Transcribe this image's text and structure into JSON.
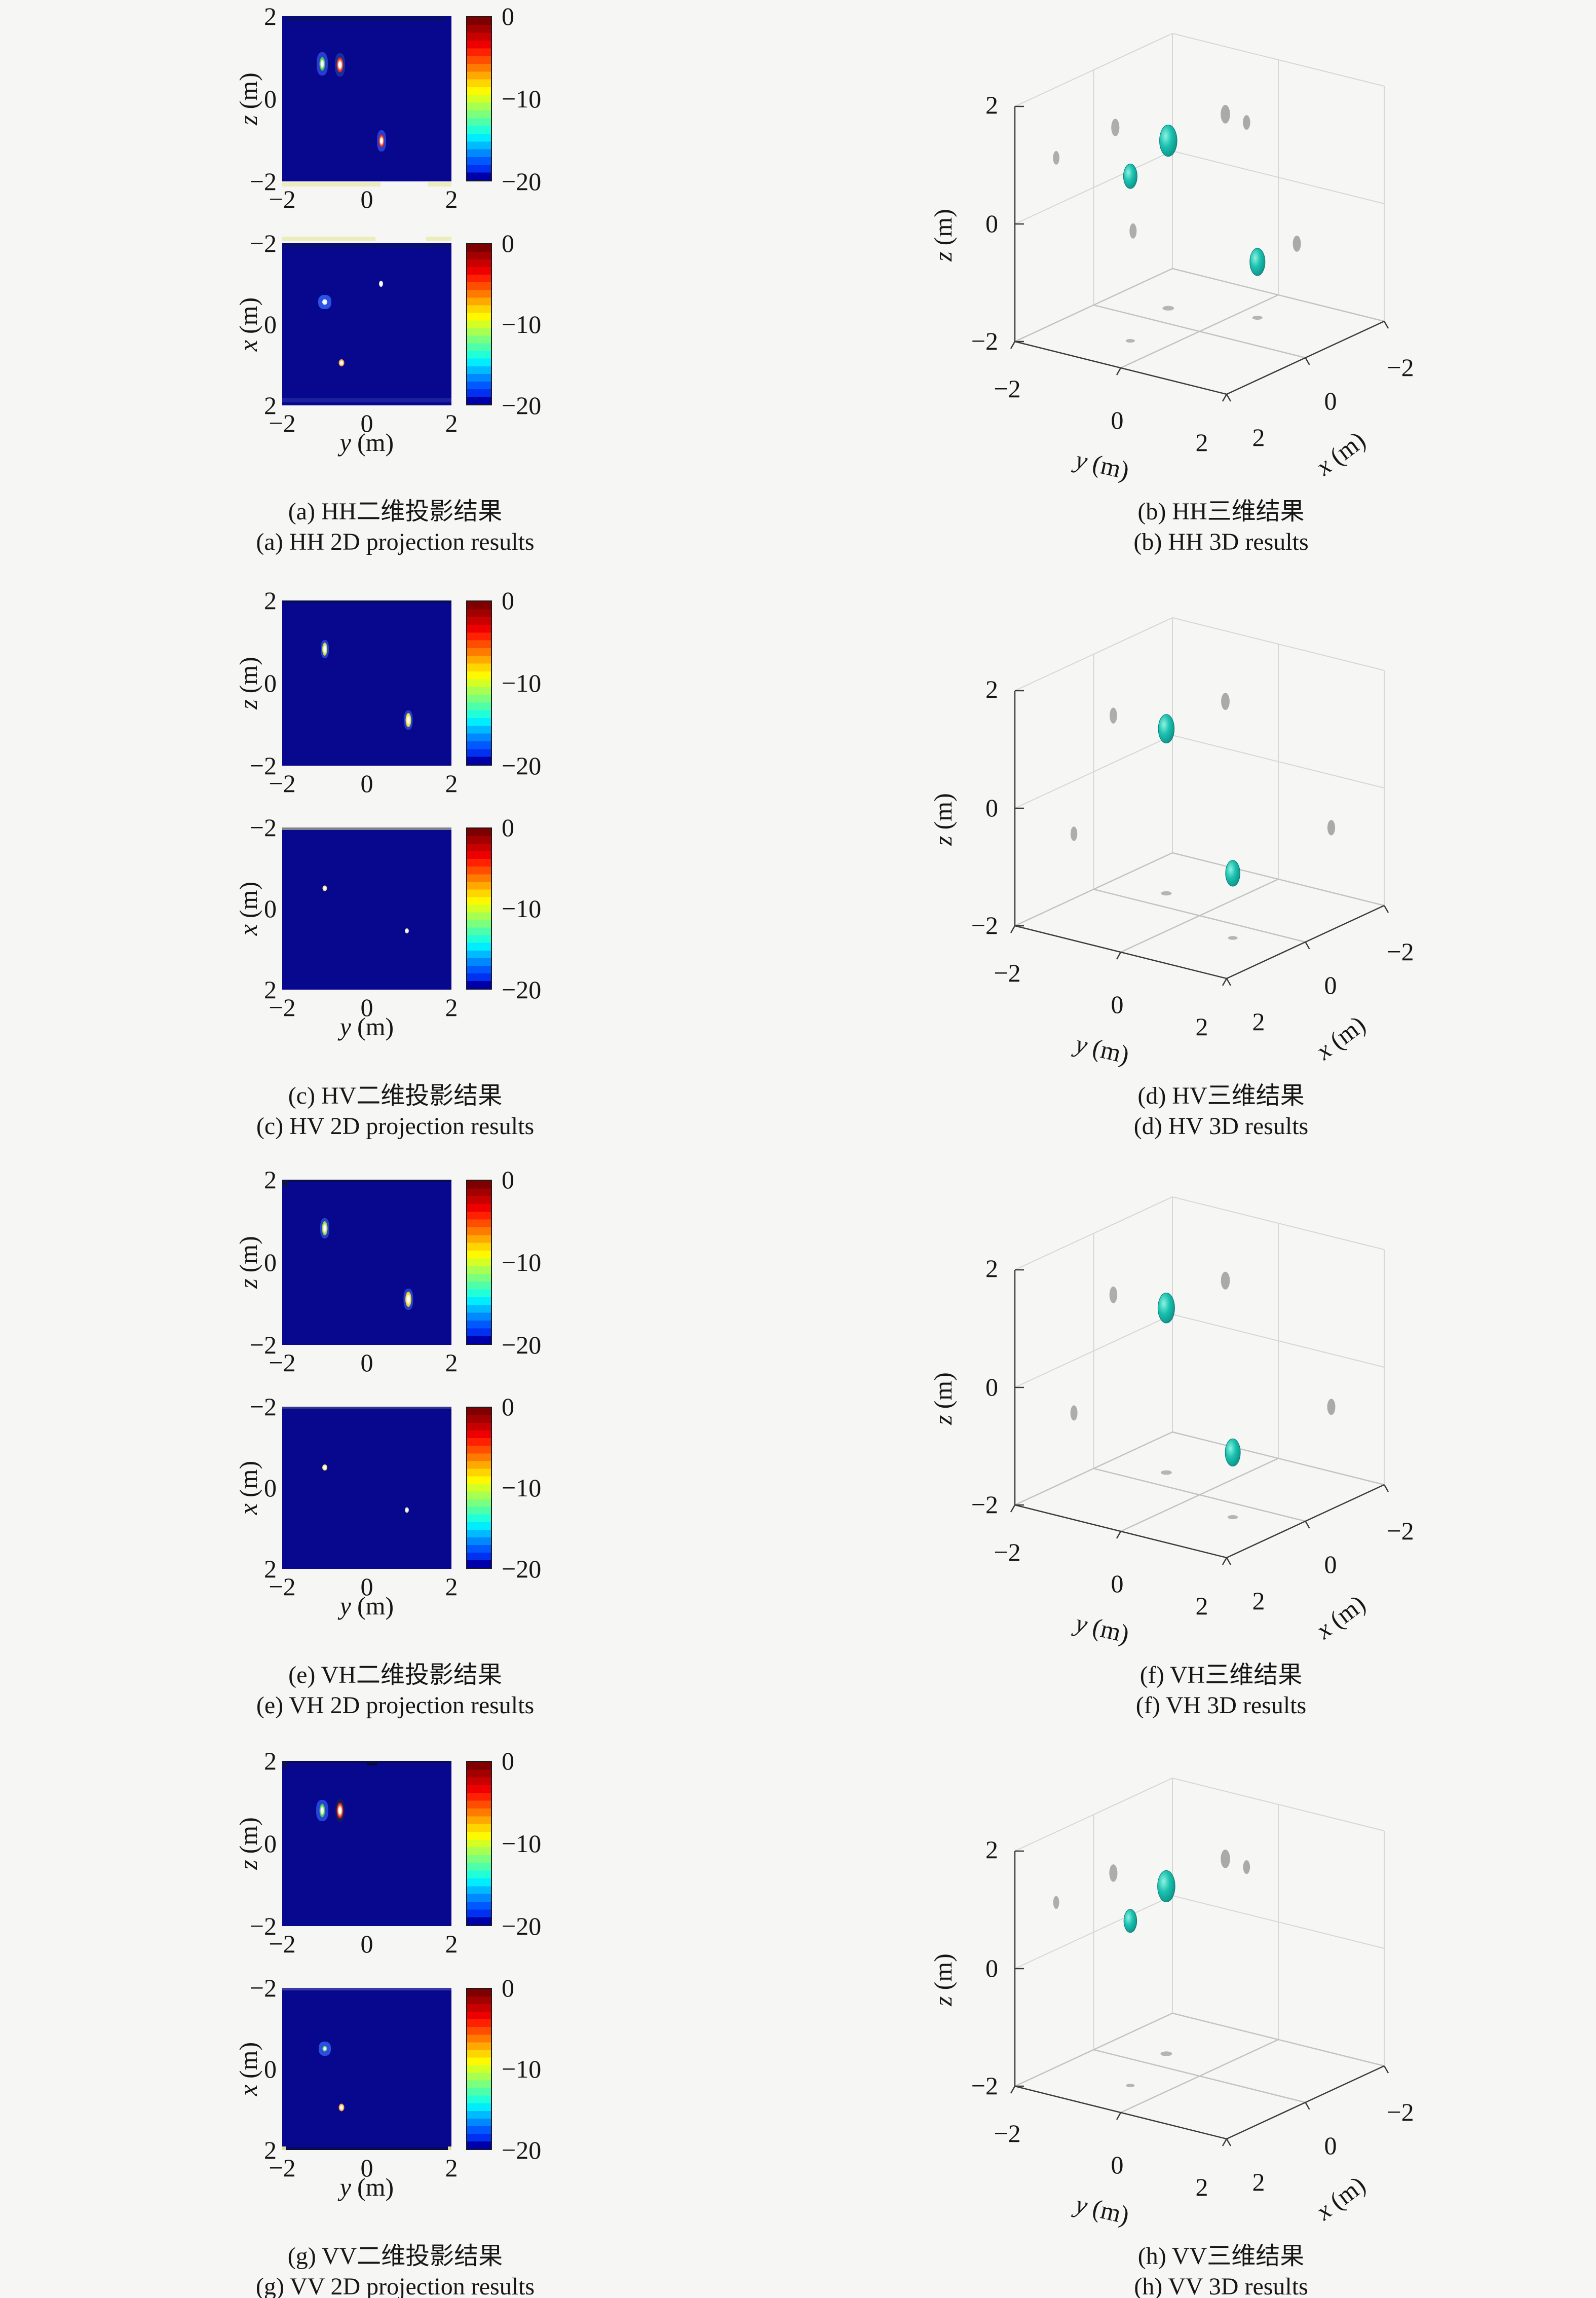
{
  "figure": {
    "background": "#f6f6f4",
    "plot_background": "#08088e",
    "blob3d_color": "#1cc2b0",
    "shadow_color": "#8f8f8f",
    "text_color": "#161616"
  },
  "shared": {
    "ticks_first": [
      "2",
      "0",
      "−2"
    ],
    "ticks_neg": [
      "−2",
      "0",
      "2"
    ],
    "colorbar_ticks": [
      "0",
      "−10",
      "−20"
    ],
    "ticks3d": {
      "z": [
        "2",
        "0",
        "−2"
      ],
      "y": [
        "−2",
        "0",
        "2"
      ],
      "x": [
        "2",
        "0",
        "−2"
      ]
    },
    "labels": {
      "z": {
        "v": "z",
        "u": "(m)"
      },
      "x": {
        "v": "x",
        "u": "(m)"
      },
      "y": {
        "v": "y",
        "u": "(m)"
      }
    },
    "colorbar_colors": [
      "#7f0000",
      "#a30000",
      "#c90000",
      "#ef0000",
      "#ff2100",
      "#ff4e00",
      "#ff7b00",
      "#ffa800",
      "#ffd500",
      "#fff900",
      "#d4ff24",
      "#a7ff51",
      "#7aff7e",
      "#4dffab",
      "#20ffd8",
      "#00edff",
      "#00baff",
      "#0089ff",
      "#0058ff",
      "#0030f0",
      "#0000a8"
    ]
  },
  "chart_data": [
    {
      "id": "a",
      "channel": "HH",
      "type": "heatmap-pair",
      "caption_zh": "(a) HH二维投影结果",
      "caption_en": "(a) HH 2D projection results",
      "colorbar": {
        "range": [
          0,
          -20
        ]
      },
      "top": {
        "axes": "z vs y",
        "xlim": [
          -2,
          2
        ],
        "ylim": [
          -2,
          2
        ],
        "points": [
          {
            "u": -1.05,
            "v": 0.85,
            "halo": "#2a3fd4",
            "hw": 22,
            "hh": 46,
            "core": "#3fc24b",
            "cw": 11,
            "ch": 27
          },
          {
            "u": -0.64,
            "v": 0.82,
            "halo": "#1c2e9e",
            "hw": 20,
            "hh": 46,
            "core": "#e03516",
            "cw": 13,
            "ch": 29
          },
          {
            "u": 0.35,
            "v": -1.02,
            "halo": "#2a3fd4",
            "hw": 18,
            "hh": 42,
            "core": "#de2d12",
            "cw": 11,
            "ch": 25
          }
        ],
        "bands": [
          {
            "dy": 2,
            "x0": 0.02,
            "x1": 0.97,
            "h": 7,
            "c": "#071066"
          },
          {
            "dy": 328,
            "x0": 0.0,
            "x1": 0.58,
            "h": 8,
            "c": "#ececbc"
          },
          {
            "dy": 328,
            "x0": 0.86,
            "x1": 1.0,
            "h": 8,
            "c": "#ececbc"
          }
        ]
      },
      "bottom": {
        "axes": "x vs y",
        "xlim": [
          -2,
          2
        ],
        "ylim": [
          -2,
          2
        ],
        "points": [
          {
            "u": 0.33,
            "v": -1.0,
            "core": "#e8e8e8",
            "cw": 8,
            "ch": 12
          },
          {
            "u": -1.0,
            "v": -0.55,
            "halo": "#2e55e8",
            "hw": 26,
            "hh": 28,
            "core": "#cfefff",
            "cw": 10,
            "ch": 11
          },
          {
            "u": -0.6,
            "v": 0.95,
            "core": "#f0a03c",
            "cw": 11,
            "ch": 14
          }
        ],
        "bands": [
          {
            "dy": -13,
            "x0": 0.0,
            "x1": 0.55,
            "h": 9,
            "c": "#ececbc"
          },
          {
            "dy": -13,
            "x0": 0.85,
            "x1": 1.0,
            "h": 9,
            "c": "#ececbc"
          },
          {
            "dy": 2,
            "x0": 0.0,
            "x1": 1.0,
            "h": 6,
            "c": "#071066"
          },
          {
            "dy": 306,
            "x0": 0.0,
            "x1": 1.0,
            "h": 8,
            "c": "#1a229e"
          }
        ]
      }
    },
    {
      "id": "b",
      "channel": "HH",
      "type": "isosurface-3d",
      "caption_zh": "(b) HH三维结果",
      "caption_en": "(b) HH 3D results",
      "xlim": [
        2,
        -2
      ],
      "ylim": [
        -2,
        2
      ],
      "zlim": [
        -2,
        2
      ],
      "targets": [
        {
          "x": -0.55,
          "y": -1.0,
          "z": 0.85,
          "s": 1.15
        },
        {
          "x": 0.95,
          "y": -0.6,
          "z": 0.8,
          "s": 0.9
        },
        {
          "x": -1.0,
          "y": 0.35,
          "z": -1.05,
          "s": 1.0
        }
      ]
    },
    {
      "id": "c",
      "channel": "HV",
      "type": "heatmap-pair",
      "caption_zh": "(c) HV二维投影结果",
      "caption_en": "(c) HV 2D projection results",
      "colorbar": {
        "range": [
          0,
          -20
        ]
      },
      "top": {
        "axes": "z vs y",
        "xlim": [
          -2,
          2
        ],
        "ylim": [
          -2,
          2
        ],
        "points": [
          {
            "u": -1.0,
            "v": 0.82,
            "halo": "#2742cf",
            "hw": 16,
            "hh": 36,
            "core": "#b8d83c",
            "cw": 10,
            "ch": 26
          },
          {
            "u": 0.98,
            "v": -0.9,
            "halo": "#2742cf",
            "hw": 17,
            "hh": 38,
            "core": "#e6d22c",
            "cw": 11,
            "ch": 28
          }
        ],
        "bands": [
          {
            "dy": 0,
            "x0": 0.0,
            "x1": 1.0,
            "h": 5,
            "c": "#060c58"
          }
        ]
      },
      "bottom": {
        "axes": "x vs y",
        "xlim": [
          -2,
          2
        ],
        "ylim": [
          -2,
          2
        ],
        "points": [
          {
            "u": -1.0,
            "v": -0.5,
            "core": "#e6de6a",
            "cw": 9,
            "ch": 11
          },
          {
            "u": 0.95,
            "v": 0.55,
            "core": "#d8d8cc",
            "cw": 8,
            "ch": 10
          }
        ],
        "bands": [
          {
            "dy": 0,
            "x0": 0.0,
            "x1": 1.0,
            "h": 5,
            "c": "#82828c"
          }
        ]
      }
    },
    {
      "id": "d",
      "channel": "HV",
      "type": "isosurface-3d",
      "caption_zh": "(d) HV三维结果",
      "caption_en": "(d) HV 3D results",
      "xlim": [
        2,
        -2
      ],
      "ylim": [
        -2,
        2
      ],
      "zlim": [
        -2,
        2
      ],
      "targets": [
        {
          "x": -0.5,
          "y": -1.0,
          "z": 0.8,
          "s": 1.05
        },
        {
          "x": 0.5,
          "y": 1.0,
          "z": -0.9,
          "s": 0.95
        }
      ]
    },
    {
      "id": "e",
      "channel": "VH",
      "type": "heatmap-pair",
      "caption_zh": "(e) VH二维投影结果",
      "caption_en": "(e) VH 2D projection results",
      "colorbar": {
        "range": [
          0,
          -20
        ]
      },
      "top": {
        "axes": "z vs y",
        "xlim": [
          -2,
          2
        ],
        "ylim": [
          -2,
          2
        ],
        "points": [
          {
            "u": -1.0,
            "v": 0.82,
            "halo": "#2742cf",
            "hw": 18,
            "hh": 40,
            "core": "#9ccf3a",
            "cw": 11,
            "ch": 28
          },
          {
            "u": 0.98,
            "v": -0.9,
            "halo": "#2742cf",
            "hw": 19,
            "hh": 42,
            "core": "#e8ce2a",
            "cw": 12,
            "ch": 30
          }
        ],
        "bands": [
          {
            "dy": 0,
            "x0": 0.0,
            "x1": 0.035,
            "h": 12,
            "c": "#10124a"
          },
          {
            "dy": 0,
            "x0": 0.035,
            "x1": 1.0,
            "h": 5,
            "c": "#060c58"
          }
        ]
      },
      "bottom": {
        "axes": "x vs y",
        "xlim": [
          -2,
          2
        ],
        "ylim": [
          -2,
          2
        ],
        "points": [
          {
            "u": -1.0,
            "v": -0.5,
            "core": "#e8e060",
            "cw": 10,
            "ch": 12
          },
          {
            "u": 0.95,
            "v": 0.55,
            "core": "#d0d0c8",
            "cw": 8,
            "ch": 11
          }
        ],
        "bands": [
          {
            "dy": 0,
            "x0": 0.0,
            "x1": 1.0,
            "h": 4,
            "c": "#303a88"
          }
        ]
      }
    },
    {
      "id": "f",
      "channel": "VH",
      "type": "isosurface-3d",
      "caption_zh": "(f) VH三维结果",
      "caption_en": "(f) VH 3D results",
      "xlim": [
        2,
        -2
      ],
      "ylim": [
        -2,
        2
      ],
      "zlim": [
        -2,
        2
      ],
      "targets": [
        {
          "x": -0.5,
          "y": -1.0,
          "z": 0.8,
          "s": 1.1
        },
        {
          "x": 0.5,
          "y": 1.0,
          "z": -0.9,
          "s": 1.0
        }
      ]
    },
    {
      "id": "g",
      "channel": "VV",
      "type": "heatmap-pair",
      "caption_zh": "(g) VV二维投影结果",
      "caption_en": "(g) VV 2D projection results",
      "colorbar": {
        "range": [
          0,
          -20
        ]
      },
      "top": {
        "axes": "z vs y",
        "xlim": [
          -2,
          2
        ],
        "ylim": [
          -2,
          2
        ],
        "points": [
          {
            "u": -1.05,
            "v": 0.8,
            "halo": "#2447e0",
            "hw": 24,
            "hh": 42,
            "core": "#46bf46",
            "cw": 11,
            "ch": 27
          },
          {
            "u": -0.64,
            "v": 0.8,
            "halo": "#131b5e",
            "hw": 18,
            "hh": 44,
            "core": "#d82a12",
            "cw": 13,
            "ch": 31
          }
        ],
        "bands": [
          {
            "dy": 0,
            "x0": 0.0,
            "x1": 0.03,
            "h": 12,
            "c": "#10124a"
          },
          {
            "dy": 0,
            "x0": 0.5,
            "x1": 0.56,
            "h": 9,
            "c": "#0a0a30"
          },
          {
            "dy": 0,
            "x0": 0.03,
            "x1": 1.0,
            "h": 4,
            "c": "#060c58"
          }
        ]
      },
      "bottom": {
        "axes": "x vs y",
        "xlim": [
          -2,
          2
        ],
        "ylim": [
          -2,
          2
        ],
        "points": [
          {
            "u": -1.0,
            "v": -0.5,
            "halo": "#2d52e6",
            "hw": 24,
            "hh": 28,
            "core": "#5ecf62",
            "cw": 9,
            "ch": 11
          },
          {
            "u": -0.6,
            "v": 0.95,
            "core": "#f0a03c",
            "cw": 11,
            "ch": 15
          }
        ],
        "bands": [
          {
            "dy": 0,
            "x0": 0.0,
            "x1": 1.0,
            "h": 5,
            "c": "#3a3aa8"
          },
          {
            "dy": 315,
            "x0": 0.0,
            "x1": 1.0,
            "h": 5,
            "c": "#070b46"
          },
          {
            "dy": 313,
            "x0": 0.0,
            "x1": 0.02,
            "h": 7,
            "c": "#e0e09a"
          },
          {
            "dy": 313,
            "x0": 0.98,
            "x1": 1.0,
            "h": 7,
            "c": "#e0e09a"
          }
        ]
      }
    },
    {
      "id": "h",
      "channel": "VV",
      "type": "isosurface-3d",
      "caption_zh": "(h) VV三维结果",
      "caption_en": "(h) VV 3D results",
      "xlim": [
        2,
        -2
      ],
      "ylim": [
        -2,
        2
      ],
      "zlim": [
        -2,
        2
      ],
      "targets": [
        {
          "x": -0.5,
          "y": -1.0,
          "z": 0.85,
          "s": 1.15
        },
        {
          "x": 0.95,
          "y": -0.6,
          "z": 0.8,
          "s": 0.85
        }
      ]
    }
  ]
}
